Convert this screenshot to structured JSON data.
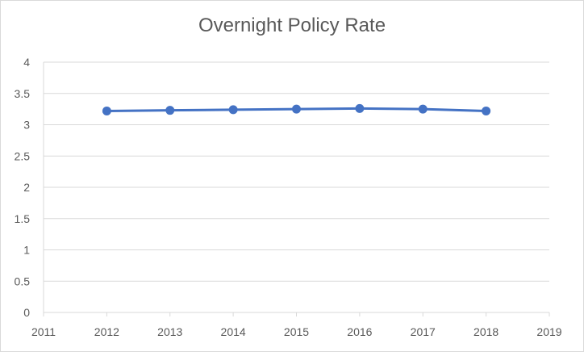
{
  "chart_data": {
    "type": "line",
    "title": "Overnight Policy Rate",
    "xlabel": "",
    "ylabel": "",
    "x": [
      2012,
      2013,
      2014,
      2015,
      2016,
      2017,
      2018
    ],
    "series": [
      {
        "values": [
          3.22,
          3.23,
          3.24,
          3.25,
          3.26,
          3.25,
          3.22
        ]
      }
    ],
    "xlim": [
      2011,
      2019
    ],
    "ylim": [
      0,
      4
    ],
    "x_ticks": [
      "2011",
      "2012",
      "2013",
      "2014",
      "2015",
      "2016",
      "2017",
      "2018",
      "2019"
    ],
    "y_ticks": [
      "0",
      "0.5",
      "1",
      "1.5",
      "2",
      "2.5",
      "3",
      "3.5",
      "4"
    ],
    "grid": "horizontal",
    "legend": "none",
    "colors": {
      "line": "#4472c4",
      "grid": "#d9d9d9",
      "text": "#595959"
    }
  }
}
